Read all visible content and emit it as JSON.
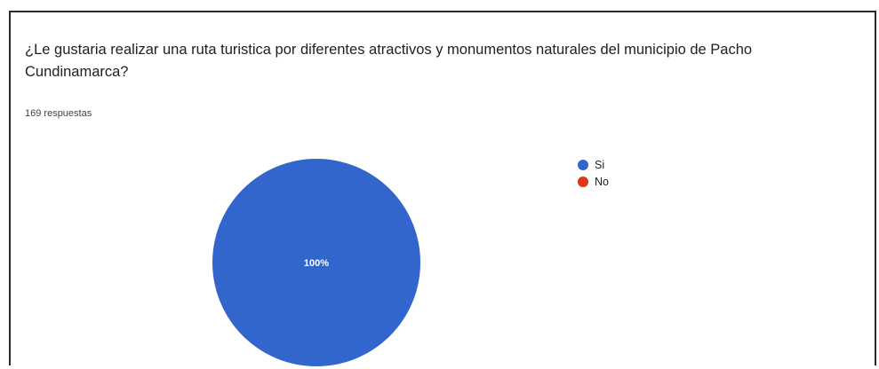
{
  "question": {
    "title": "¿Le gustaria realizar una ruta turistica por diferentes atractivos y monumentos naturales del municipio de Pacho Cundinamarca?",
    "response_count": "169 respuestas"
  },
  "chart_data": {
    "type": "pie",
    "title": "",
    "categories": [
      "Si",
      "No"
    ],
    "values": [
      100,
      0
    ],
    "labels": [
      "100%",
      ""
    ],
    "colors": [
      "#3366cc",
      "#dc3912"
    ],
    "legend_position": "right"
  }
}
